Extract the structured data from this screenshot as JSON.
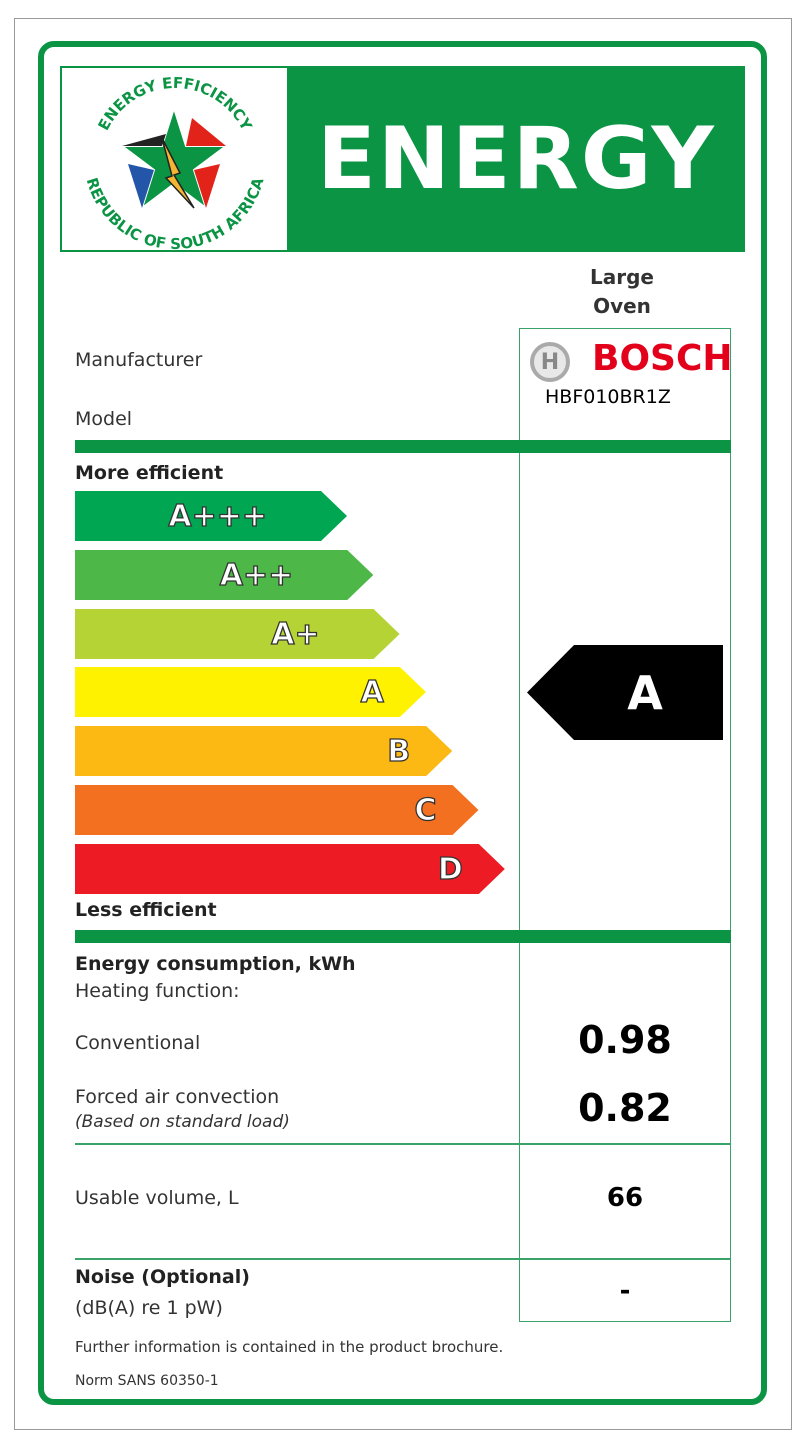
{
  "header": {
    "logo_text_top": "ENERGY EFFICIENCY",
    "logo_text_bottom": "REPUBLIC OF SOUTH AFRICA",
    "title": "ENERGY"
  },
  "appliance_type": [
    "Large",
    "Oven"
  ],
  "manufacturer_label": "Manufacturer",
  "model_label": "Model",
  "manufacturer": "BOSCH",
  "model": "HBF010BR1Z",
  "scale": {
    "top_label": "More efficient",
    "bottom_label": "Less efficient",
    "classes": [
      {
        "label": "A+++",
        "color": "#00a651"
      },
      {
        "label": "A++",
        "color": "#4db848"
      },
      {
        "label": "A+",
        "color": "#b5d334"
      },
      {
        "label": "A",
        "color": "#fff200"
      },
      {
        "label": "B",
        "color": "#fdb913"
      },
      {
        "label": "C",
        "color": "#f37021"
      },
      {
        "label": "D",
        "color": "#ed1c24"
      }
    ],
    "rating": "A"
  },
  "consumption": {
    "title": "Energy consumption, kWh",
    "subtitle": "Heating function:",
    "conventional_label": "Conventional",
    "conventional_value": "0.98",
    "forced_label": "Forced air convection",
    "forced_note": "(Based on standard load)",
    "forced_value": "0.82"
  },
  "volume": {
    "label": "Usable volume, L",
    "value": "66"
  },
  "noise": {
    "label": "Noise (Optional)",
    "unit": "(dB(A) re 1 pW)",
    "value": "-"
  },
  "footer": {
    "info": "Further information is contained in the product brochure.",
    "norm": "Norm SANS 60350-1"
  },
  "colors": {
    "green": "#0a9444",
    "bosch_red": "#e2001a"
  }
}
